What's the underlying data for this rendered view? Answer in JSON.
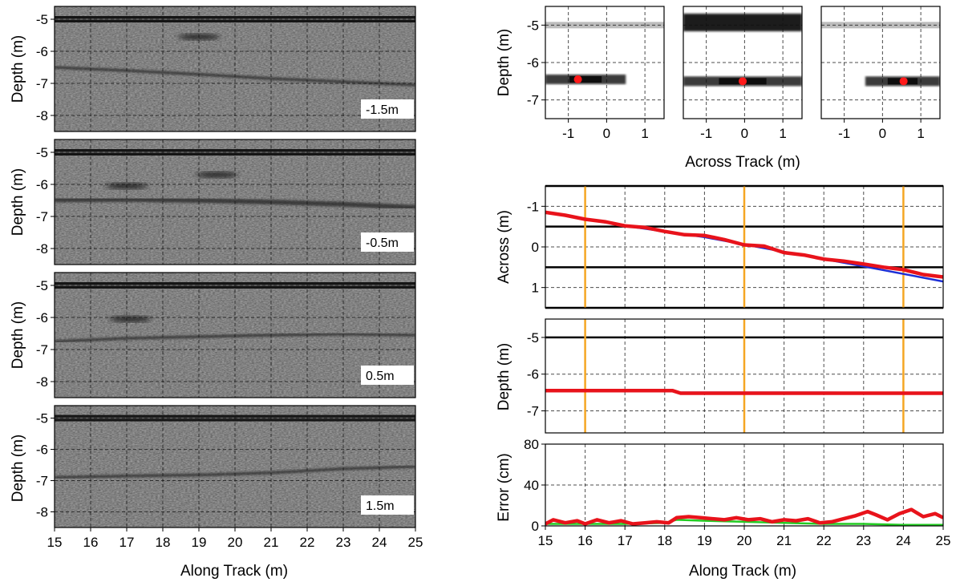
{
  "colors": {
    "estimate": "#e8131b",
    "truth": "#1c2fd6",
    "error_alt": "#22cc22",
    "marker": "#f5a623",
    "point": "#ff1a1a",
    "pipe_track": "#000000"
  },
  "chart_data": [
    {
      "type": "heatmap",
      "panel": "bscan",
      "slice_label": "-1.5m",
      "xlabel": "",
      "ylabel": "Depth (m)",
      "xlim": [
        15,
        25
      ],
      "ylim": [
        -8.5,
        -4.6
      ],
      "y_ticks": [
        "-5",
        "-6",
        "-7",
        "-8"
      ],
      "x_ticks": [],
      "features": {
        "surface_depth": -5.0,
        "pipe": [
          [
            15,
            -6.5
          ],
          [
            17,
            -6.6
          ],
          [
            19,
            -6.72
          ],
          [
            21,
            -6.85
          ],
          [
            23,
            -6.95
          ],
          [
            25,
            -7.05
          ]
        ],
        "blob": {
          "x": 19.0,
          "y": -5.55
        }
      }
    },
    {
      "type": "heatmap",
      "panel": "bscan",
      "slice_label": "-0.5m",
      "xlabel": "",
      "ylabel": "Depth (m)",
      "xlim": [
        15,
        25
      ],
      "ylim": [
        -8.5,
        -4.6
      ],
      "y_ticks": [
        "-5",
        "-6",
        "-7",
        "-8"
      ],
      "x_ticks": [],
      "features": {
        "surface_depth": -5.0,
        "pipe": [
          [
            15,
            -6.48
          ],
          [
            17,
            -6.47
          ],
          [
            19,
            -6.5
          ],
          [
            21,
            -6.55
          ],
          [
            23,
            -6.62
          ],
          [
            25,
            -6.72
          ]
        ],
        "blob": {
          "x": 17.0,
          "y": -6.05
        },
        "blob2": {
          "x": 19.5,
          "y": -5.7
        }
      }
    },
    {
      "type": "heatmap",
      "panel": "bscan",
      "slice_label": "0.5m",
      "xlabel": "",
      "ylabel": "Depth (m)",
      "xlim": [
        15,
        25
      ],
      "ylim": [
        -8.5,
        -4.6
      ],
      "y_ticks": [
        "-5",
        "-6",
        "-7",
        "-8"
      ],
      "x_ticks": [],
      "features": {
        "surface_depth": -5.0,
        "pipe": [
          [
            15,
            -6.75
          ],
          [
            17,
            -6.65
          ],
          [
            19,
            -6.6
          ],
          [
            21,
            -6.55
          ],
          [
            23,
            -6.52
          ],
          [
            25,
            -6.55
          ]
        ],
        "blob": {
          "x": 17.1,
          "y": -6.05
        }
      }
    },
    {
      "type": "heatmap",
      "panel": "bscan",
      "slice_label": "1.5m",
      "xlabel": "Along Track (m)",
      "ylabel": "Depth (m)",
      "xlim": [
        15,
        25
      ],
      "ylim": [
        -8.5,
        -4.6
      ],
      "y_ticks": [
        "-5",
        "-6",
        "-7",
        "-8"
      ],
      "x_ticks": [
        "15",
        "16",
        "17",
        "18",
        "19",
        "20",
        "21",
        "22",
        "23",
        "24",
        "25"
      ],
      "features": {
        "surface_depth": -5.0,
        "pipe": [
          [
            15,
            -6.9
          ],
          [
            17,
            -6.85
          ],
          [
            19,
            -6.82
          ],
          [
            21,
            -6.75
          ],
          [
            23,
            -6.62
          ],
          [
            25,
            -6.55
          ]
        ]
      }
    },
    {
      "type": "heatmap",
      "panel": "cross_section",
      "xlabel": "",
      "ylabel": "Depth (m)",
      "xlim": [
        -1.6,
        1.5
      ],
      "ylim": [
        -7.5,
        -4.5
      ],
      "x_ticks": [
        "-1",
        "0",
        "1"
      ],
      "y_ticks": [
        "-5",
        "-6",
        "-7"
      ],
      "features": {
        "surface_depth": -5.0,
        "surface_strength": "light",
        "band": {
          "x0": -1.6,
          "x1": 0.5,
          "y": -6.45
        },
        "point": {
          "x": -0.75,
          "y": -6.45
        }
      }
    },
    {
      "type": "heatmap",
      "panel": "cross_section",
      "xlabel": "Across Track (m)",
      "ylabel": "",
      "xlim": [
        -1.6,
        1.5
      ],
      "ylim": [
        -7.5,
        -4.5
      ],
      "x_ticks": [
        "-1",
        "0",
        "1"
      ],
      "y_ticks": [],
      "features": {
        "surface_depth": -4.95,
        "surface_strength": "dark",
        "band": {
          "x0": -1.6,
          "x1": 1.5,
          "y": -6.5
        },
        "point": {
          "x": -0.05,
          "y": -6.5
        }
      }
    },
    {
      "type": "heatmap",
      "panel": "cross_section",
      "xlabel": "",
      "ylabel": "",
      "xlim": [
        -1.6,
        1.5
      ],
      "ylim": [
        -7.5,
        -4.5
      ],
      "x_ticks": [
        "-1",
        "0",
        "1"
      ],
      "y_ticks": [],
      "features": {
        "surface_depth": -5.0,
        "surface_strength": "light",
        "band": {
          "x0": -0.45,
          "x1": 1.5,
          "y": -6.5
        },
        "point": {
          "x": 0.55,
          "y": -6.5
        }
      }
    },
    {
      "type": "line",
      "panel": "across",
      "xlabel": "",
      "ylabel": "Across (m)",
      "xlim": [
        15,
        25
      ],
      "ylim": [
        1.5,
        -1.5
      ],
      "y_ticks": [
        "-1",
        "0",
        "1"
      ],
      "x_ticks": [],
      "hlines": [
        -1.5,
        -0.5,
        0.5,
        1.5
      ],
      "vlines": [
        16,
        20,
        24
      ],
      "series": [
        {
          "role": "truth",
          "x": [
            15,
            17,
            19,
            21,
            23,
            25
          ],
          "y": [
            -0.85,
            -0.52,
            -0.24,
            0.12,
            0.48,
            0.85
          ]
        },
        {
          "role": "estimate",
          "x": [
            15,
            15.5,
            16,
            16.5,
            17,
            17.5,
            18,
            18.5,
            19,
            19.5,
            20,
            20.5,
            21,
            21.5,
            22,
            22.5,
            23,
            23.5,
            24,
            24.5,
            25
          ],
          "y": [
            -0.85,
            -0.78,
            -0.68,
            -0.62,
            -0.52,
            -0.48,
            -0.38,
            -0.3,
            -0.28,
            -0.18,
            -0.05,
            -0.02,
            0.14,
            0.2,
            0.3,
            0.35,
            0.42,
            0.5,
            0.56,
            0.68,
            0.74
          ]
        }
      ]
    },
    {
      "type": "line",
      "panel": "depth",
      "xlabel": "",
      "ylabel": "Depth (m)",
      "xlim": [
        15,
        25
      ],
      "ylim": [
        -7.6,
        -4.5
      ],
      "y_ticks": [
        "-5",
        "-6",
        "-7"
      ],
      "x_ticks": [],
      "hlines": [
        -5.0
      ],
      "vlines": [
        16,
        20,
        24
      ],
      "series": [
        {
          "role": "truth",
          "x": [
            15,
            18.2,
            18.3,
            22,
            25
          ],
          "y": [
            -6.45,
            -6.45,
            -6.5,
            -6.5,
            -6.52
          ]
        },
        {
          "role": "estimate",
          "x": [
            15,
            18.2,
            18.4,
            25
          ],
          "y": [
            -6.45,
            -6.45,
            -6.52,
            -6.52
          ]
        }
      ]
    },
    {
      "type": "line",
      "panel": "error",
      "xlabel": "Along Track (m)",
      "ylabel": "Error (cm)",
      "xlim": [
        15,
        25
      ],
      "ylim": [
        0,
        80
      ],
      "y_ticks": [
        "0",
        "40",
        "80"
      ],
      "x_ticks": [
        "15",
        "16",
        "17",
        "18",
        "19",
        "20",
        "21",
        "22",
        "23",
        "24",
        "25"
      ],
      "series": [
        {
          "role": "error_alt",
          "x": [
            15,
            16,
            17,
            18,
            18.3,
            19,
            20,
            21,
            22,
            23,
            24,
            25
          ],
          "y": [
            2,
            2,
            2,
            3,
            6,
            5,
            4,
            3,
            2,
            2,
            1,
            1
          ]
        },
        {
          "role": "estimate",
          "x": [
            15,
            15.2,
            15.5,
            15.8,
            16,
            16.3,
            16.6,
            16.9,
            17.2,
            17.5,
            17.8,
            18.1,
            18.3,
            18.6,
            18.9,
            19.2,
            19.5,
            19.8,
            20.1,
            20.4,
            20.7,
            21,
            21.3,
            21.6,
            21.9,
            22.2,
            22.5,
            22.8,
            23.1,
            23.3,
            23.6,
            23.9,
            24.2,
            24.5,
            24.8,
            25
          ],
          "y": [
            2,
            6,
            3,
            5,
            2,
            6,
            3,
            5,
            2,
            3,
            4,
            3,
            8,
            9,
            8,
            7,
            6,
            8,
            6,
            7,
            4,
            6,
            5,
            7,
            3,
            4,
            7,
            10,
            14,
            11,
            6,
            12,
            16,
            9,
            12,
            8
          ]
        }
      ]
    }
  ]
}
